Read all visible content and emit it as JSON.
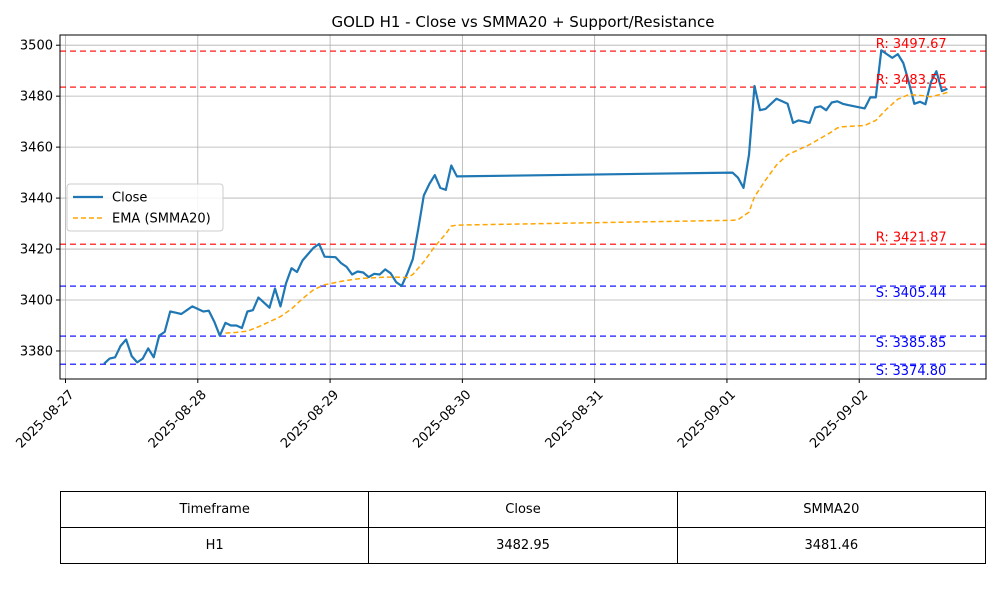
{
  "chart_data": {
    "type": "line",
    "title": "GOLD H1 - Close vs SMMA20 + Support/Resistance",
    "xlabel": "",
    "ylabel": "",
    "x_ticks": [
      "2025-08-27",
      "2025-08-28",
      "2025-08-29",
      "2025-08-30",
      "2025-08-31",
      "2025-09-01",
      "2025-09-02"
    ],
    "y_ticks": [
      3380,
      3400,
      3420,
      3440,
      3460,
      3480,
      3500
    ],
    "xlim": [
      "2025-08-26 23:00",
      "2025-09-02 23:00"
    ],
    "ylim": [
      3369,
      3504
    ],
    "grid": true,
    "legend_position": "center-left",
    "series": [
      {
        "name": "Close",
        "color": "#1f77b4",
        "style": "solid",
        "points": [
          [
            "2025-08-27 07:00",
            3375.0
          ],
          [
            "2025-08-27 08:00",
            3377.0
          ],
          [
            "2025-08-27 09:00",
            3377.5
          ],
          [
            "2025-08-27 10:00",
            3382.0
          ],
          [
            "2025-08-27 11:00",
            3384.5
          ],
          [
            "2025-08-27 12:00",
            3378.0
          ],
          [
            "2025-08-27 13:00",
            3375.5
          ],
          [
            "2025-08-27 14:00",
            3377.0
          ],
          [
            "2025-08-27 15:00",
            3381.0
          ],
          [
            "2025-08-27 16:00",
            3377.5
          ],
          [
            "2025-08-27 17:00",
            3386.0
          ],
          [
            "2025-08-27 18:00",
            3387.5
          ],
          [
            "2025-08-27 19:00",
            3395.5
          ],
          [
            "2025-08-27 20:00",
            3395.0
          ],
          [
            "2025-08-27 21:00",
            3394.5
          ],
          [
            "2025-08-27 22:00",
            3396.0
          ],
          [
            "2025-08-27 23:00",
            3397.5
          ],
          [
            "2025-08-28 01:00",
            3395.5
          ],
          [
            "2025-08-28 02:00",
            3395.8
          ],
          [
            "2025-08-28 03:00",
            3391.5
          ],
          [
            "2025-08-28 04:00",
            3386.0
          ],
          [
            "2025-08-28 05:00",
            3391.0
          ],
          [
            "2025-08-28 06:00",
            3390.0
          ],
          [
            "2025-08-28 07:00",
            3390.0
          ],
          [
            "2025-08-28 08:00",
            3389.0
          ],
          [
            "2025-08-28 09:00",
            3395.5
          ],
          [
            "2025-08-28 10:00",
            3396.0
          ],
          [
            "2025-08-28 11:00",
            3401.0
          ],
          [
            "2025-08-28 12:00",
            3399.0
          ],
          [
            "2025-08-28 13:00",
            3397.0
          ],
          [
            "2025-08-28 14:00",
            3404.5
          ],
          [
            "2025-08-28 15:00",
            3397.5
          ],
          [
            "2025-08-28 16:00",
            3406.5
          ],
          [
            "2025-08-28 17:00",
            3412.5
          ],
          [
            "2025-08-28 18:00",
            3411.0
          ],
          [
            "2025-08-28 19:00",
            3415.5
          ],
          [
            "2025-08-28 20:00",
            3418.0
          ],
          [
            "2025-08-28 21:00",
            3420.5
          ],
          [
            "2025-08-28 22:00",
            3422.0
          ],
          [
            "2025-08-28 23:00",
            3417.0
          ],
          [
            "2025-08-29 01:00",
            3416.8
          ],
          [
            "2025-08-29 02:00",
            3414.5
          ],
          [
            "2025-08-29 03:00",
            3413.0
          ],
          [
            "2025-08-29 04:00",
            3410.0
          ],
          [
            "2025-08-29 05:00",
            3411.2
          ],
          [
            "2025-08-29 06:00",
            3410.8
          ],
          [
            "2025-08-29 07:00",
            3409.0
          ],
          [
            "2025-08-29 08:00",
            3410.3
          ],
          [
            "2025-08-29 09:00",
            3410.0
          ],
          [
            "2025-08-29 10:00",
            3412.0
          ],
          [
            "2025-08-29 11:00",
            3410.5
          ],
          [
            "2025-08-29 12:00",
            3407.0
          ],
          [
            "2025-08-29 13:00",
            3405.5
          ],
          [
            "2025-08-29 14:00",
            3410.5
          ],
          [
            "2025-08-29 15:00",
            3416.0
          ],
          [
            "2025-08-29 16:00",
            3428.0
          ],
          [
            "2025-08-29 17:00",
            3441.0
          ],
          [
            "2025-08-29 18:00",
            3445.5
          ],
          [
            "2025-08-29 19:00",
            3449.0
          ],
          [
            "2025-08-29 20:00",
            3444.0
          ],
          [
            "2025-08-29 21:00",
            3443.2
          ],
          [
            "2025-08-29 22:00",
            3452.8
          ],
          [
            "2025-08-29 23:00",
            3448.5
          ],
          [
            "2025-09-01 01:00",
            3450.0
          ],
          [
            "2025-09-01 02:00",
            3448.0
          ],
          [
            "2025-09-01 03:00",
            3444.0
          ],
          [
            "2025-09-01 04:00",
            3457.0
          ],
          [
            "2025-09-01 05:00",
            3484.0
          ],
          [
            "2025-09-01 06:00",
            3474.5
          ],
          [
            "2025-09-01 07:00",
            3475.0
          ],
          [
            "2025-09-01 08:00",
            3477.0
          ],
          [
            "2025-09-01 09:00",
            3479.0
          ],
          [
            "2025-09-01 10:00",
            3478.0
          ],
          [
            "2025-09-01 11:00",
            3477.0
          ],
          [
            "2025-09-01 12:00",
            3469.5
          ],
          [
            "2025-09-01 13:00",
            3470.5
          ],
          [
            "2025-09-01 14:00",
            3470.0
          ],
          [
            "2025-09-01 15:00",
            3469.5
          ],
          [
            "2025-09-01 16:00",
            3475.5
          ],
          [
            "2025-09-01 17:00",
            3476.0
          ],
          [
            "2025-09-01 18:00",
            3474.5
          ],
          [
            "2025-09-01 19:00",
            3477.5
          ],
          [
            "2025-09-01 20:00",
            3478.0
          ],
          [
            "2025-09-01 21:00",
            3477.0
          ],
          [
            "2025-09-01 22:00",
            3476.5
          ],
          [
            "2025-09-02 01:00",
            3475.2
          ],
          [
            "2025-09-02 02:00",
            3479.5
          ],
          [
            "2025-09-02 03:00",
            3479.5
          ],
          [
            "2025-09-02 04:00",
            3498.0
          ],
          [
            "2025-09-02 05:00",
            3496.5
          ],
          [
            "2025-09-02 06:00",
            3495.0
          ],
          [
            "2025-09-02 07:00",
            3496.5
          ],
          [
            "2025-09-02 08:00",
            3493.0
          ],
          [
            "2025-09-02 09:00",
            3485.5
          ],
          [
            "2025-09-02 10:00",
            3477.0
          ],
          [
            "2025-09-02 11:00",
            3477.8
          ],
          [
            "2025-09-02 12:00",
            3476.8
          ],
          [
            "2025-09-02 13:00",
            3485.5
          ],
          [
            "2025-09-02 14:00",
            3489.8
          ],
          [
            "2025-09-02 15:00",
            3482.0
          ],
          [
            "2025-09-02 16:00",
            3482.95
          ]
        ]
      },
      {
        "name": "EMA (SMMA20)",
        "color": "#ffa500",
        "style": "dashed",
        "points": [
          [
            "2025-08-28 05:00",
            3387.0
          ],
          [
            "2025-08-28 07:00",
            3387.3
          ],
          [
            "2025-08-28 09:00",
            3387.8
          ],
          [
            "2025-08-28 11:00",
            3389.5
          ],
          [
            "2025-08-28 13:00",
            3391.5
          ],
          [
            "2025-08-28 15:00",
            3393.5
          ],
          [
            "2025-08-28 17:00",
            3396.5
          ],
          [
            "2025-08-28 19:00",
            3400.5
          ],
          [
            "2025-08-28 21:00",
            3404.0
          ],
          [
            "2025-08-28 23:00",
            3406.0
          ],
          [
            "2025-08-29 02:00",
            3407.3
          ],
          [
            "2025-08-29 04:00",
            3408.0
          ],
          [
            "2025-08-29 06:00",
            3408.5
          ],
          [
            "2025-08-29 08:00",
            3408.7
          ],
          [
            "2025-08-29 10:00",
            3409.0
          ],
          [
            "2025-08-29 12:00",
            3409.0
          ],
          [
            "2025-08-29 14:00",
            3408.8
          ],
          [
            "2025-08-29 15:00",
            3410.0
          ],
          [
            "2025-08-29 17:00",
            3415.0
          ],
          [
            "2025-08-29 19:00",
            3421.0
          ],
          [
            "2025-08-29 21:00",
            3426.0
          ],
          [
            "2025-08-29 22:00",
            3429.0
          ],
          [
            "2025-08-29 23:00",
            3429.4
          ],
          [
            "2025-09-01 01:00",
            3431.3
          ],
          [
            "2025-09-01 02:00",
            3431.5
          ],
          [
            "2025-09-01 04:00",
            3434.5
          ],
          [
            "2025-09-01 05:00",
            3440.5
          ],
          [
            "2025-09-01 07:00",
            3447.0
          ],
          [
            "2025-09-01 09:00",
            3453.0
          ],
          [
            "2025-09-01 11:00",
            3457.0
          ],
          [
            "2025-09-01 13:00",
            3459.0
          ],
          [
            "2025-09-01 15:00",
            3461.0
          ],
          [
            "2025-09-01 17:00",
            3463.5
          ],
          [
            "2025-09-01 19:00",
            3466.0
          ],
          [
            "2025-09-01 20:00",
            3467.5
          ],
          [
            "2025-09-01 21:00",
            3468.0
          ],
          [
            "2025-09-02 01:00",
            3468.5
          ],
          [
            "2025-09-02 03:00",
            3470.5
          ],
          [
            "2025-09-02 05:00",
            3475.0
          ],
          [
            "2025-09-02 07:00",
            3478.8
          ],
          [
            "2025-09-02 09:00",
            3480.6
          ],
          [
            "2025-09-02 11:00",
            3480.3
          ],
          [
            "2025-09-02 13:00",
            3479.8
          ],
          [
            "2025-09-02 15:00",
            3480.8
          ],
          [
            "2025-09-02 16:00",
            3481.46
          ]
        ]
      }
    ],
    "levels": [
      {
        "kind": "resistance",
        "value": 3497.67,
        "label": "R: 3497.67",
        "color": "#ff0000"
      },
      {
        "kind": "resistance",
        "value": 3483.55,
        "label": "R: 3483.55",
        "color": "#ff0000"
      },
      {
        "kind": "resistance",
        "value": 3421.87,
        "label": "R: 3421.87",
        "color": "#ff0000"
      },
      {
        "kind": "support",
        "value": 3405.44,
        "label": "S: 3405.44",
        "color": "#0000ff"
      },
      {
        "kind": "support",
        "value": 3385.85,
        "label": "S: 3385.85",
        "color": "#0000ff"
      },
      {
        "kind": "support",
        "value": 3374.8,
        "label": "S: 3374.80",
        "color": "#0000ff"
      }
    ],
    "level_label_at": "2025-09-02 03:00"
  },
  "table": {
    "headers": [
      "Timeframe",
      "Close",
      "SMMA20"
    ],
    "rows": [
      [
        "H1",
        "3482.95",
        "3481.46"
      ]
    ]
  }
}
